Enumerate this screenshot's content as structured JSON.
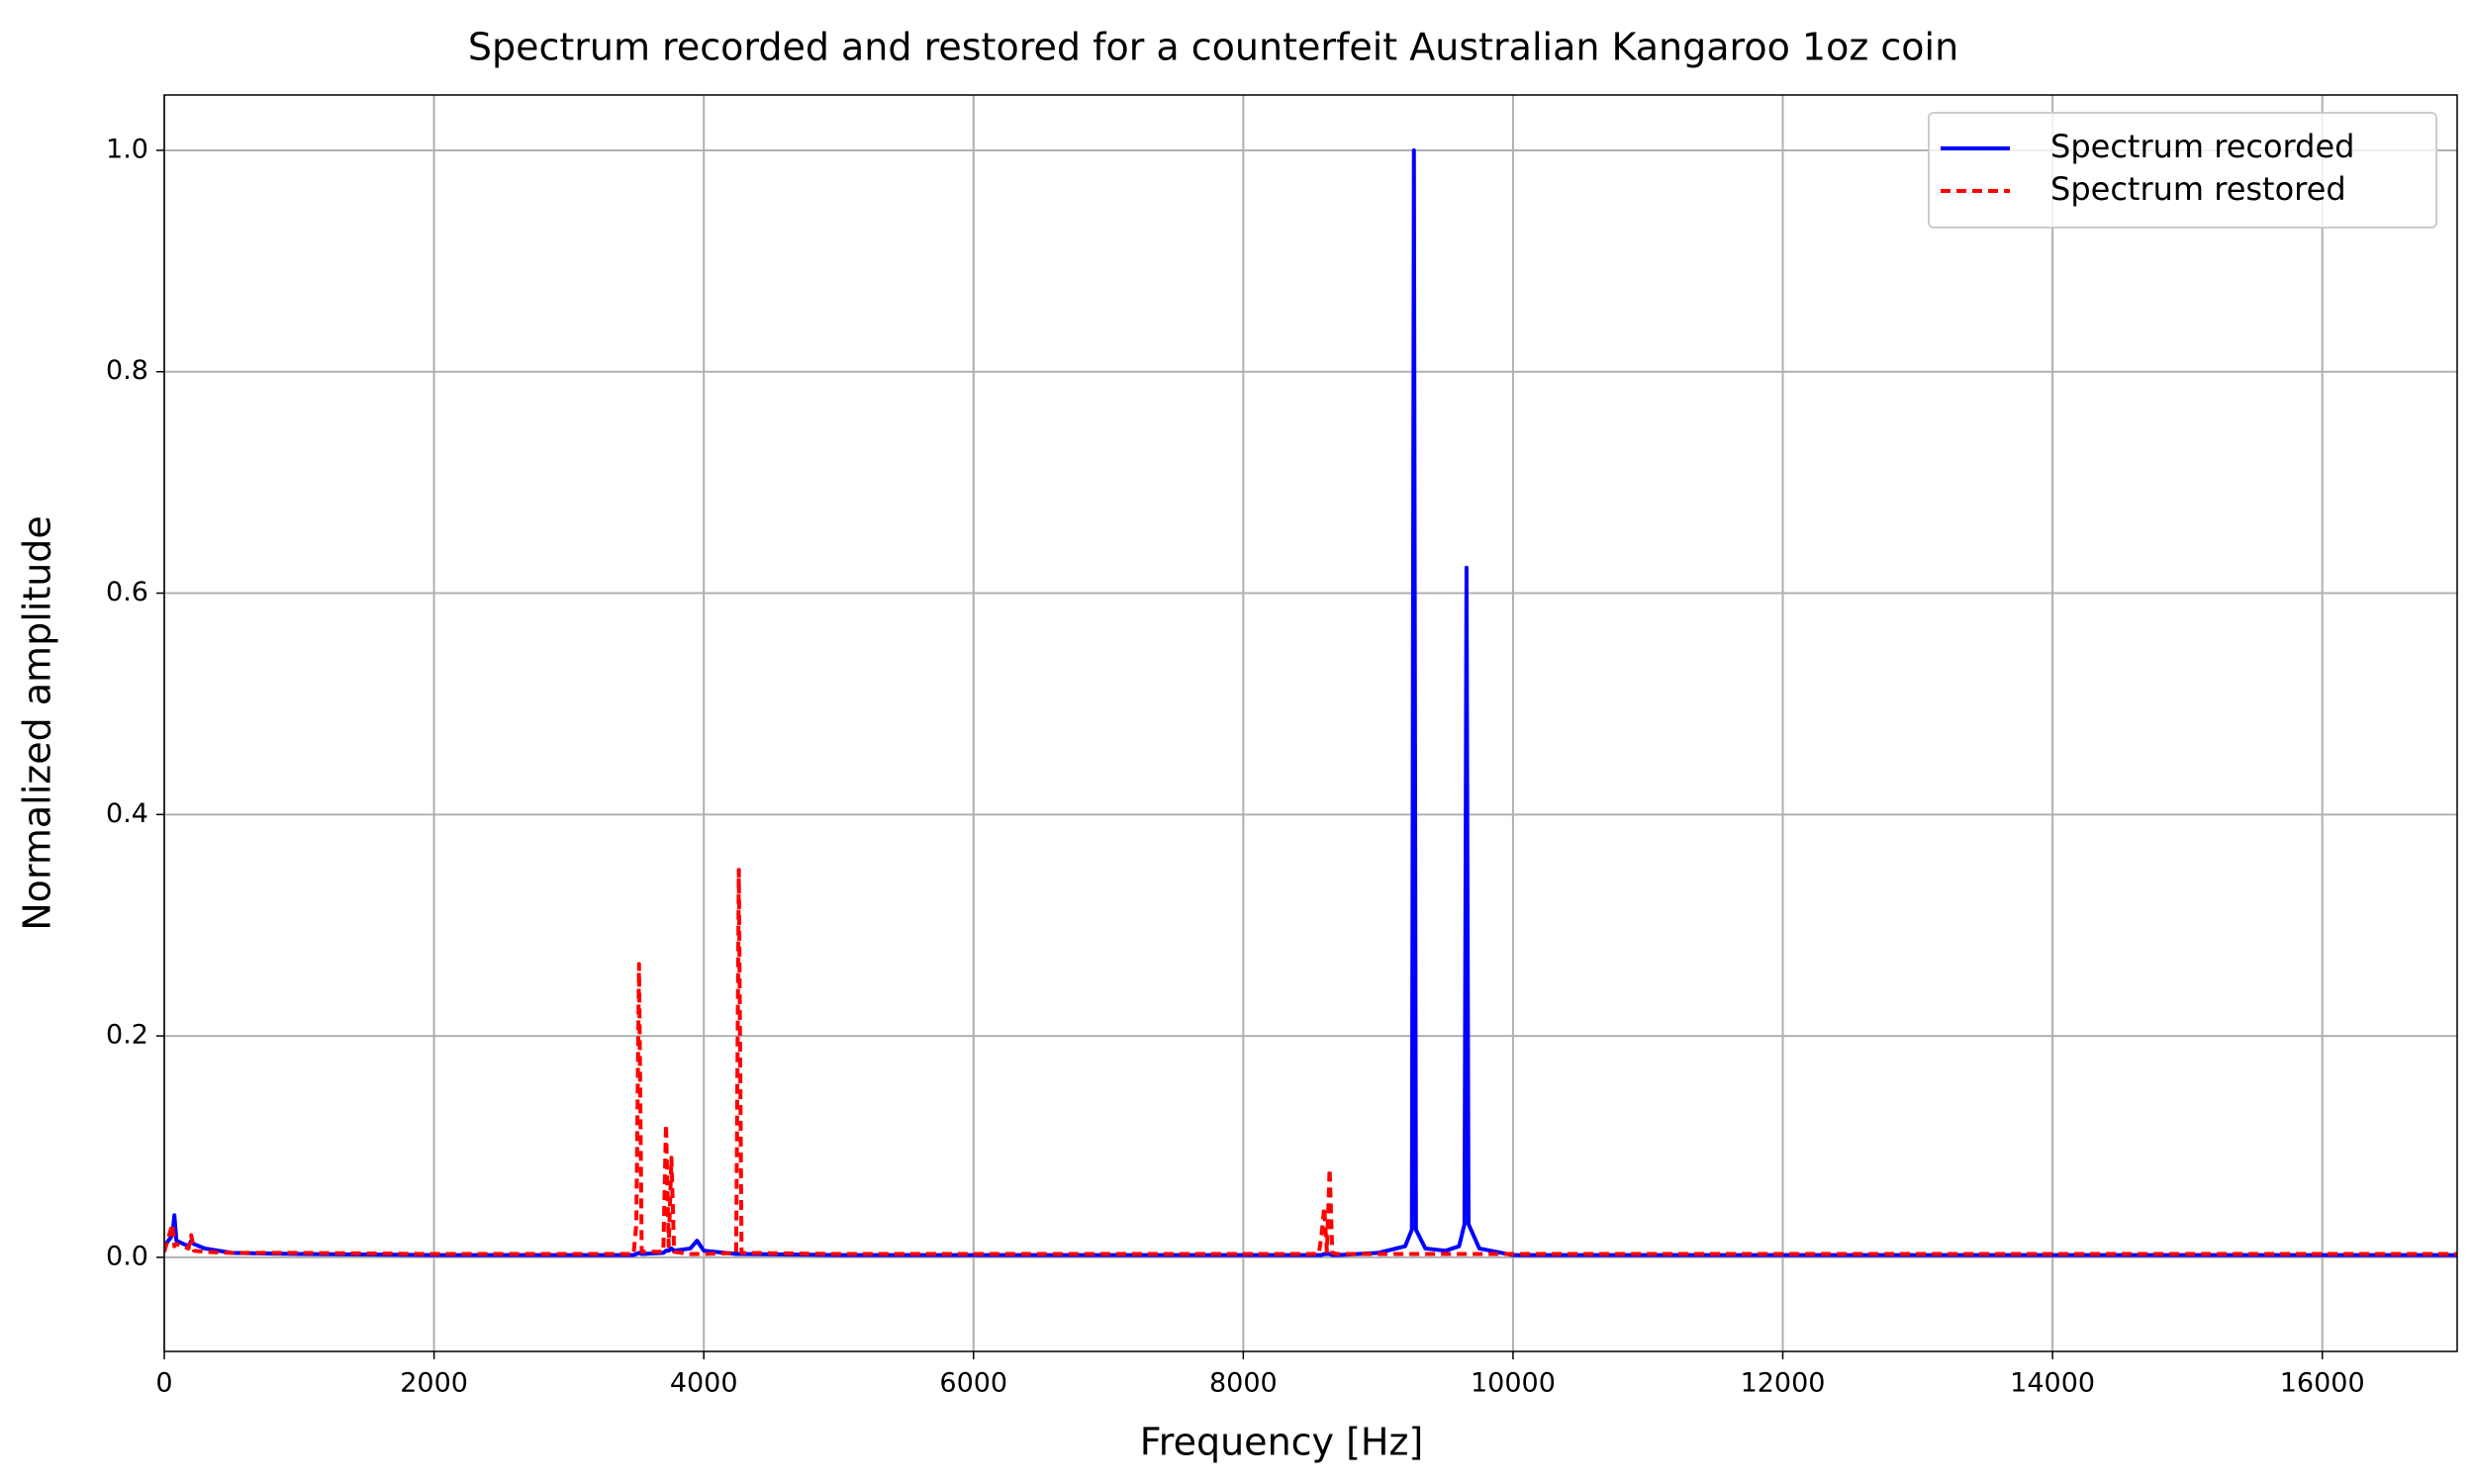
{
  "chart_data": {
    "type": "line",
    "title": "Spectrum recorded and restored for a counterfeit Australian Kangaroo 1oz coin",
    "x_label": "Frequency [Hz]",
    "y_label": "Normalized amplitude",
    "x": [
      0,
      60,
      75,
      90,
      180,
      200,
      220,
      300,
      500,
      1000,
      2000,
      3000,
      3480,
      3500,
      3520,
      3540,
      3700,
      3720,
      3740,
      3760,
      3780,
      3900,
      3950,
      4000,
      4240,
      4260,
      4280,
      5000,
      6000,
      7000,
      8000,
      8560,
      8580,
      8600,
      8620,
      8640,
      8660,
      8700,
      9000,
      9200,
      9250,
      9265,
      9280,
      9350,
      9500,
      9600,
      9640,
      9655,
      9670,
      9750,
      10000,
      11000,
      12000,
      13000,
      14000,
      15000,
      16000,
      17000
    ],
    "series": [
      {
        "name": "Spectrum recorded",
        "color": "#0000ff",
        "dashed": false,
        "values": [
          0.01,
          0.02,
          0.038,
          0.015,
          0.01,
          0.015,
          0.012,
          0.008,
          0.004,
          0.003,
          0.002,
          0.002,
          0.002,
          0.003,
          0.004,
          0.003,
          0.004,
          0.006,
          0.006,
          0.008,
          0.006,
          0.008,
          0.015,
          0.006,
          0.003,
          0.003,
          0.003,
          0.002,
          0.002,
          0.002,
          0.002,
          0.002,
          0.002,
          0.003,
          0.003,
          0.003,
          0.002,
          0.002,
          0.004,
          0.01,
          0.025,
          1.0,
          0.025,
          0.008,
          0.006,
          0.01,
          0.03,
          0.623,
          0.03,
          0.008,
          0.002,
          0.002,
          0.002,
          0.002,
          0.002,
          0.002,
          0.002,
          0.002
        ]
      },
      {
        "name": "Spectrum restored",
        "color": "#ff0000",
        "dashed": true,
        "values": [
          0.005,
          0.03,
          0.01,
          0.012,
          0.008,
          0.02,
          0.006,
          0.005,
          0.004,
          0.004,
          0.003,
          0.003,
          0.003,
          0.03,
          0.265,
          0.005,
          0.005,
          0.12,
          0.01,
          0.09,
          0.005,
          0.003,
          0.003,
          0.003,
          0.004,
          0.35,
          0.004,
          0.003,
          0.003,
          0.003,
          0.003,
          0.003,
          0.02,
          0.045,
          0.005,
          0.08,
          0.004,
          0.003,
          0.003,
          0.003,
          0.003,
          0.003,
          0.003,
          0.003,
          0.003,
          0.003,
          0.003,
          0.003,
          0.003,
          0.003,
          0.003,
          0.003,
          0.003,
          0.003,
          0.003,
          0.003,
          0.003,
          0.003
        ]
      }
    ],
    "xlim": [
      0,
      17000
    ],
    "ylim": [
      -0.085,
      1.05
    ],
    "xticks": [
      0,
      2000,
      4000,
      6000,
      8000,
      10000,
      12000,
      14000,
      16000
    ],
    "yticks": [
      {
        "value": 0,
        "label": "0.0"
      },
      0.2,
      0.4,
      0.6,
      0.8,
      {
        "value": 1,
        "label": "1.0"
      }
    ],
    "grid": true,
    "legend": "upper right"
  }
}
